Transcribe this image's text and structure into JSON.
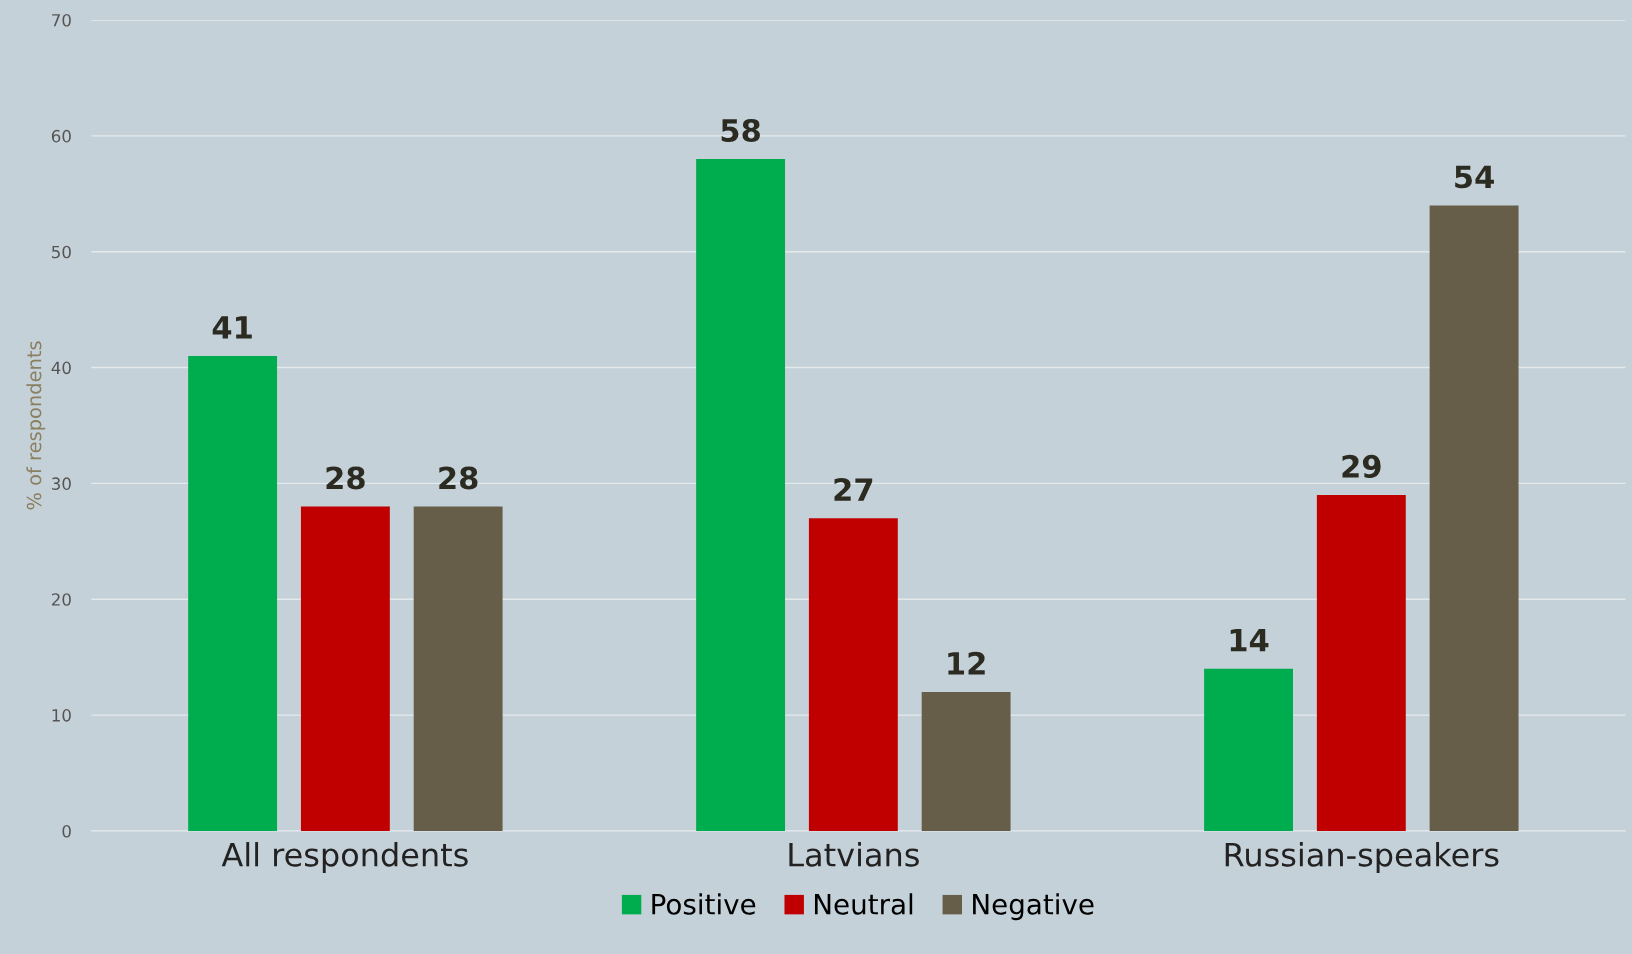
{
  "chart_data": {
    "type": "bar",
    "ylabel": "% of respondents",
    "categories": [
      "All respondents",
      "Latvians",
      "Russian-speakers"
    ],
    "series": [
      {
        "name": "Positive",
        "color": "#00ad4e",
        "values": [
          41,
          58,
          14
        ]
      },
      {
        "name": "Neutral",
        "color": "#c00000",
        "values": [
          28,
          27,
          29
        ]
      },
      {
        "name": "Negative",
        "color": "#665e48",
        "values": [
          28,
          12,
          54
        ]
      }
    ],
    "ylim": [
      0,
      70
    ],
    "yticks": [
      0,
      10,
      20,
      30,
      40,
      50,
      60,
      70
    ],
    "grid": "y",
    "legend": "bottom",
    "data_labels": true
  }
}
